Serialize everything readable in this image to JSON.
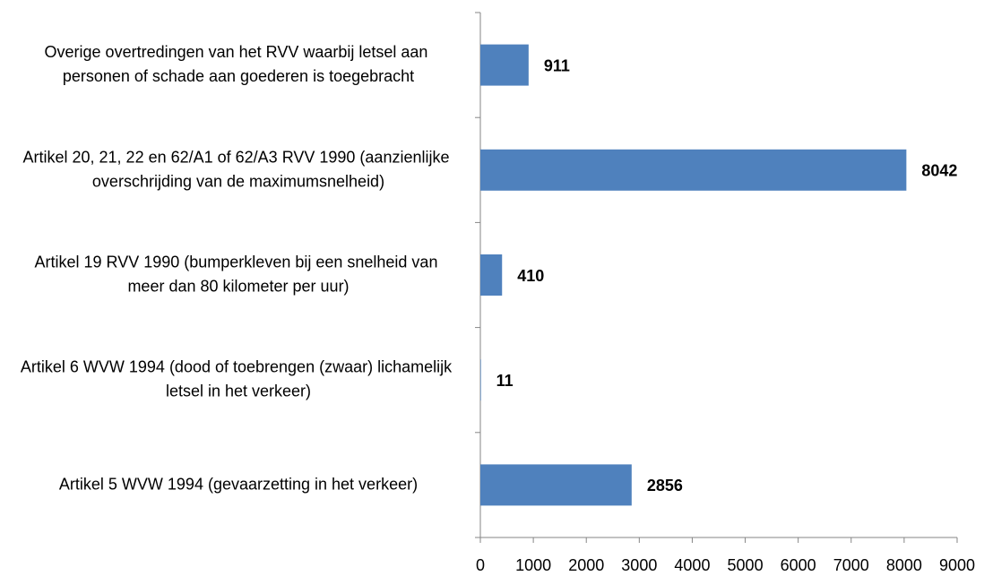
{
  "chart_data": {
    "type": "bar",
    "orientation": "horizontal",
    "categories": [
      "Overige overtredingen van het RVV waarbij letsel aan personen of schade aan goederen is toegebracht",
      "Artikel 20, 21, 22 en 62/A1 of 62/A3 RVV 1990 (aanzienlijke overschrijding van de maximumsnelheid)",
      "Artikel 19 RVV 1990 (bumperkleven bij een snelheid van meer dan 80 kilometer per uur)",
      "Artikel 6 WVW 1994 (dood of toebrengen (zwaar) lichamelijk letsel in het verkeer)",
      "Artikel 5 WVW 1994 (gevaarzetting in het verkeer)"
    ],
    "values": [
      911,
      8042,
      410,
      11,
      2856
    ],
    "color": "#4f81bd",
    "xlim": [
      0,
      9000
    ],
    "xticks": [
      0,
      1000,
      2000,
      3000,
      4000,
      5000,
      6000,
      7000,
      8000,
      9000
    ]
  }
}
